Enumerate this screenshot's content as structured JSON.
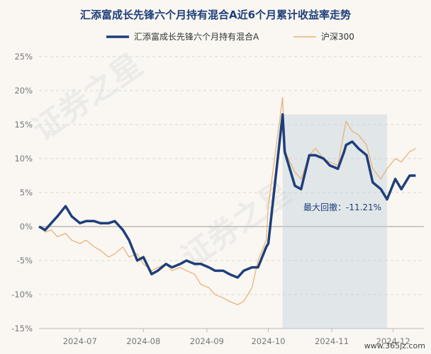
{
  "chart_data": {
    "type": "line",
    "title": "汇添富成长先锋六个月持有混合A近6个月累计收益率走势",
    "xlabel": "",
    "ylabel": "",
    "x_ticks": [
      "2024-07",
      "2024-08",
      "2024-09",
      "2024-10",
      "2024-11",
      "2024-12"
    ],
    "y_ticks": [
      "25%",
      "20%",
      "15%",
      "10%",
      "5%",
      "0%",
      "-5%",
      "-10%",
      "-15%"
    ],
    "ylim": [
      -15,
      25
    ],
    "grid": true,
    "legend_position": "top",
    "annotation": "最大回撤：-11.21%",
    "x": [
      "2024-06-11",
      "2024-06-14",
      "2024-06-17",
      "2024-06-20",
      "2024-06-24",
      "2024-06-27",
      "2024-07-01",
      "2024-07-04",
      "2024-07-08",
      "2024-07-11",
      "2024-07-15",
      "2024-07-18",
      "2024-07-22",
      "2024-07-25",
      "2024-07-29",
      "2024-08-01",
      "2024-08-05",
      "2024-08-08",
      "2024-08-12",
      "2024-08-15",
      "2024-08-19",
      "2024-08-22",
      "2024-08-26",
      "2024-08-29",
      "2024-09-02",
      "2024-09-05",
      "2024-09-09",
      "2024-09-12",
      "2024-09-16",
      "2024-09-19",
      "2024-09-23",
      "2024-09-26",
      "2024-09-30",
      "2024-10-01",
      "2024-10-08",
      "2024-10-09",
      "2024-10-10",
      "2024-10-14",
      "2024-10-17",
      "2024-10-21",
      "2024-10-24",
      "2024-10-28",
      "2024-10-31",
      "2024-11-04",
      "2024-11-07",
      "2024-11-08",
      "2024-11-11",
      "2024-11-14",
      "2024-11-18",
      "2024-11-21",
      "2024-11-25",
      "2024-11-28",
      "2024-12-02",
      "2024-12-05",
      "2024-12-09",
      "2024-12-12"
    ],
    "series": [
      {
        "name": "汇添富成长先锋六个月持有混合A",
        "color": "#1f3f7a",
        "values": [
          0.0,
          -0.5,
          0.5,
          1.5,
          3.0,
          1.5,
          0.5,
          0.8,
          0.8,
          0.5,
          0.5,
          0.8,
          -0.5,
          -2.0,
          -5.0,
          -4.5,
          -7.0,
          -6.5,
          -5.5,
          -6.0,
          -5.5,
          -5.0,
          -5.5,
          -5.5,
          -6.0,
          -6.5,
          -6.5,
          -7.0,
          -7.5,
          -6.5,
          -6.0,
          -6.0,
          -3.0,
          -2.5,
          16.5,
          11.0,
          10.0,
          6.0,
          5.5,
          10.5,
          10.5,
          10.0,
          9.0,
          8.5,
          11.0,
          12.0,
          12.5,
          11.5,
          10.5,
          6.5,
          5.5,
          4.0,
          7.0,
          5.5,
          7.5,
          7.5
        ]
      },
      {
        "name": "沪深300",
        "color": "#e8b27a",
        "values": [
          0.0,
          -0.8,
          -0.5,
          -1.5,
          -1.0,
          -2.0,
          -2.5,
          -2.0,
          -3.0,
          -3.5,
          -4.5,
          -4.0,
          -3.0,
          -4.5,
          -4.0,
          -5.5,
          -6.5,
          -6.0,
          -5.5,
          -6.5,
          -6.0,
          -6.5,
          -7.0,
          -8.5,
          -9.0,
          -10.0,
          -10.5,
          -11.0,
          -11.5,
          -11.0,
          -9.0,
          -5.0,
          -2.0,
          3.0,
          19.0,
          11.5,
          10.5,
          8.0,
          7.0,
          10.5,
          11.5,
          10.0,
          9.5,
          9.0,
          14.0,
          15.5,
          14.0,
          13.5,
          12.0,
          8.5,
          7.0,
          8.5,
          10.0,
          9.5,
          11.0,
          11.5
        ]
      }
    ]
  },
  "watermark": "证券之星",
  "corner_text": "www.365jz.com"
}
